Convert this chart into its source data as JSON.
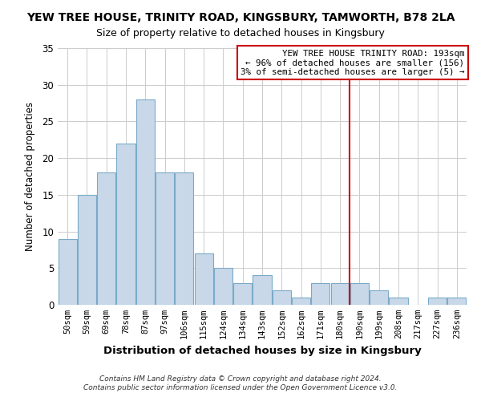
{
  "title": "YEW TREE HOUSE, TRINITY ROAD, KINGSBURY, TAMWORTH, B78 2LA",
  "subtitle": "Size of property relative to detached houses in Kingsbury",
  "xlabel": "Distribution of detached houses by size in Kingsbury",
  "ylabel": "Number of detached properties",
  "bar_labels": [
    "50sqm",
    "59sqm",
    "69sqm",
    "78sqm",
    "87sqm",
    "97sqm",
    "106sqm",
    "115sqm",
    "124sqm",
    "134sqm",
    "143sqm",
    "152sqm",
    "162sqm",
    "171sqm",
    "180sqm",
    "190sqm",
    "199sqm",
    "208sqm",
    "217sqm",
    "227sqm",
    "236sqm"
  ],
  "bar_values": [
    9,
    15,
    18,
    22,
    28,
    18,
    18,
    7,
    5,
    3,
    4,
    2,
    1,
    3,
    3,
    3,
    2,
    1,
    0,
    1,
    1
  ],
  "bar_color": "#c8d8e8",
  "bar_edge_color": "#7aaac8",
  "reference_line_x": 15,
  "reference_line_color": "#cc0000",
  "annotation_text": "YEW TREE HOUSE TRINITY ROAD: 193sqm\n← 96% of detached houses are smaller (156)\n3% of semi-detached houses are larger (5) →",
  "annotation_box_edge_color": "#cc0000",
  "ylim": [
    0,
    35
  ],
  "yticks": [
    0,
    5,
    10,
    15,
    20,
    25,
    30,
    35
  ],
  "footnote1": "Contains HM Land Registry data © Crown copyright and database right 2024.",
  "footnote2": "Contains public sector information licensed under the Open Government Licence v3.0.",
  "bg_color": "#ffffff",
  "grid_color": "#cccccc"
}
